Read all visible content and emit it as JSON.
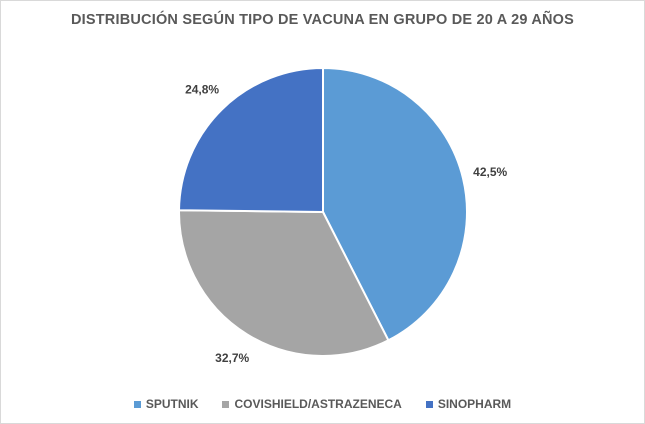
{
  "chart_data": {
    "type": "pie",
    "title": "DISTRIBUCIÓN SEGÚN TIPO DE VACUNA EN GRUPO DE 20 A 29 AÑOS",
    "categories": [
      "SPUTNIK",
      "COVISHIELD/ASTRAZENECA",
      "SINOPHARM"
    ],
    "values": [
      42.5,
      32.7,
      24.8
    ],
    "value_labels": [
      "42,5%",
      "32,7%",
      "24,8%"
    ],
    "colors": [
      "#5b9bd5",
      "#a5a5a5",
      "#4472c4"
    ],
    "legend_position": "bottom"
  }
}
